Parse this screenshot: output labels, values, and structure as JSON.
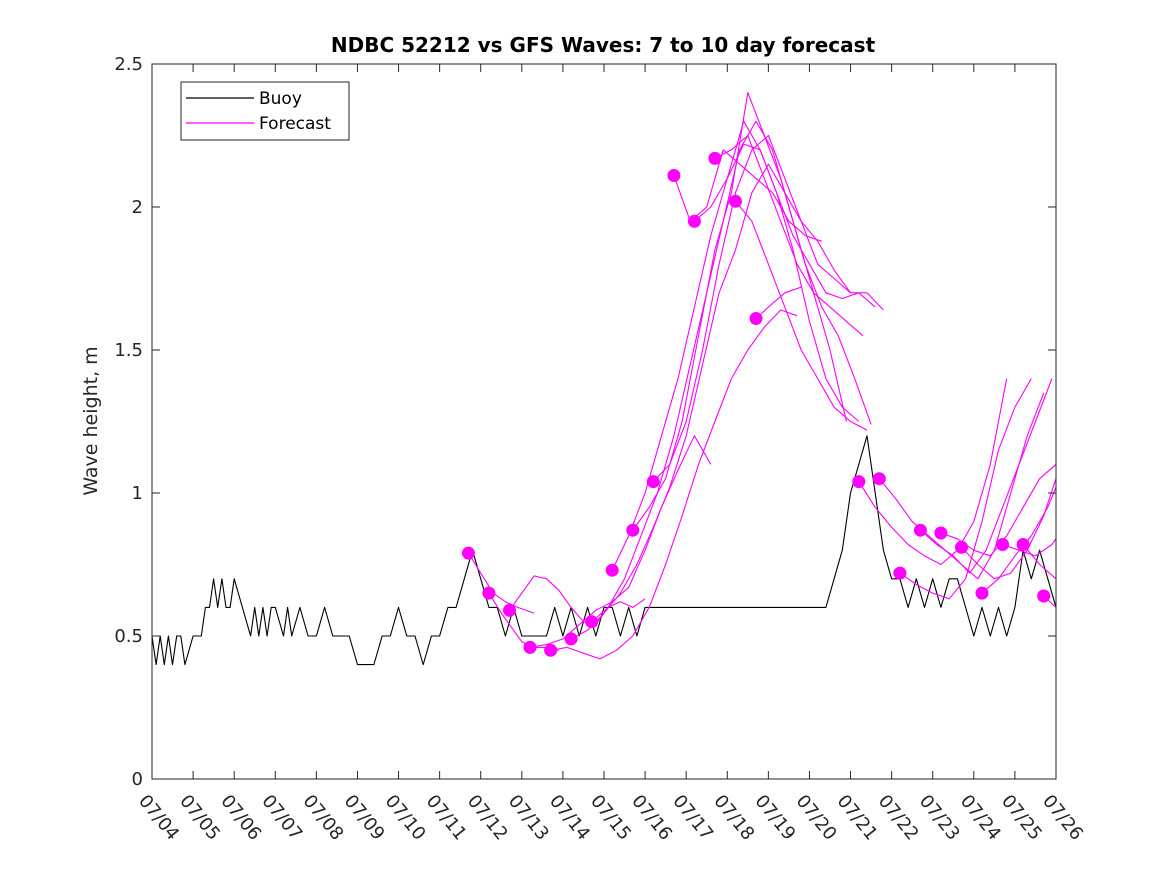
{
  "chart_data": {
    "type": "line",
    "title": "NDBC 52212 vs GFS Waves: 7 to 10 day forecast",
    "xlabel": "",
    "ylabel": "Wave height, m",
    "ylim": [
      0,
      2.5
    ],
    "yticks": [
      "0",
      "0.5",
      "1",
      "1.5",
      "2",
      "2.5"
    ],
    "xlim": [
      "07/04",
      "07/26"
    ],
    "xticks": [
      "07/04",
      "07/05",
      "07/06",
      "07/07",
      "07/08",
      "07/09",
      "07/10",
      "07/11",
      "07/12",
      "07/13",
      "07/14",
      "07/15",
      "07/16",
      "07/17",
      "07/18",
      "07/19",
      "07/20",
      "07/21",
      "07/22",
      "07/23",
      "07/24",
      "07/25",
      "07/26"
    ],
    "grid": false,
    "legend": {
      "position": "top-left",
      "entries": [
        "Buoy",
        "Forecast"
      ]
    },
    "colors": {
      "buoy": "#000000",
      "forecast": "#ff00ff",
      "axes": "#262626"
    },
    "series": [
      {
        "name": "Buoy",
        "color": "#000000",
        "x": [
          0.0,
          0.1,
          0.2,
          0.3,
          0.4,
          0.5,
          0.6,
          0.7,
          0.8,
          1.0,
          1.2,
          1.3,
          1.4,
          1.5,
          1.6,
          1.7,
          1.8,
          1.9,
          2.0,
          2.2,
          2.4,
          2.5,
          2.6,
          2.7,
          2.8,
          2.9,
          3.0,
          3.2,
          3.3,
          3.4,
          3.6,
          3.8,
          4.0,
          4.2,
          4.4,
          4.6,
          4.8,
          5.0,
          5.2,
          5.4,
          5.6,
          5.8,
          6.0,
          6.2,
          6.4,
          6.6,
          6.8,
          7.0,
          7.2,
          7.4,
          7.6,
          7.8,
          8.0,
          8.2,
          8.4,
          8.6,
          8.8,
          9.0,
          9.2,
          9.4,
          9.6,
          9.8,
          10.0,
          10.2,
          10.4,
          10.6,
          10.8,
          11.0,
          11.2,
          11.4,
          11.6,
          11.8,
          12.0,
          12.2,
          12.4,
          12.6,
          12.8,
          13.0,
          13.2,
          13.4,
          13.6,
          13.8,
          14.0,
          14.2,
          14.4,
          14.6,
          14.8,
          15.0,
          15.2,
          15.4,
          15.6,
          15.8,
          16.0,
          16.2,
          16.4,
          16.6,
          16.8,
          17.0,
          17.2,
          17.4,
          17.6,
          17.8,
          18.0,
          18.2,
          18.4,
          18.6,
          18.8,
          19.0,
          19.2,
          19.4,
          19.6,
          19.8,
          20.0,
          20.2,
          20.4,
          20.6,
          20.8,
          21.0,
          21.2,
          21.4,
          21.6,
          21.8,
          22.0
        ],
        "values": [
          0.5,
          0.4,
          0.5,
          0.4,
          0.5,
          0.4,
          0.5,
          0.5,
          0.4,
          0.5,
          0.5,
          0.6,
          0.6,
          0.7,
          0.6,
          0.7,
          0.6,
          0.6,
          0.7,
          0.6,
          0.5,
          0.6,
          0.5,
          0.6,
          0.5,
          0.6,
          0.6,
          0.5,
          0.6,
          0.5,
          0.6,
          0.5,
          0.5,
          0.6,
          0.5,
          0.5,
          0.5,
          0.4,
          0.4,
          0.4,
          0.5,
          0.5,
          0.6,
          0.5,
          0.5,
          0.4,
          0.5,
          0.5,
          0.6,
          0.6,
          0.7,
          0.8,
          0.7,
          0.6,
          0.6,
          0.5,
          0.6,
          0.5,
          0.5,
          0.5,
          0.5,
          0.6,
          0.5,
          0.6,
          0.5,
          0.6,
          0.5,
          0.6,
          0.6,
          0.5,
          0.6,
          0.5,
          0.6,
          0.6,
          0.6,
          0.6,
          0.6,
          0.6,
          0.6,
          0.6,
          0.6,
          0.6,
          0.6,
          0.6,
          0.6,
          0.6,
          0.6,
          0.6,
          0.6,
          0.6,
          0.6,
          0.6,
          0.6,
          0.6,
          0.6,
          0.7,
          0.8,
          1.0,
          1.1,
          1.2,
          1.0,
          0.8,
          0.7,
          0.7,
          0.6,
          0.7,
          0.6,
          0.7,
          0.6,
          0.7,
          0.7,
          0.6,
          0.5,
          0.6,
          0.5,
          0.6,
          0.5,
          0.6,
          0.8,
          0.7,
          0.8,
          0.7,
          0.6
        ],
        "markers": false
      },
      {
        "name": "Forecast",
        "color": "#ff00ff",
        "x": [
          7.7,
          8.0,
          8.3,
          8.6,
          8.9,
          9.3
        ],
        "values": [
          0.79,
          0.72,
          0.65,
          0.62,
          0.6,
          0.58
        ],
        "markers": false
      },
      {
        "color": "#ff00ff",
        "x": [
          8.2,
          8.5,
          8.8,
          9.0,
          9.3,
          9.6,
          9.9
        ],
        "values": [
          0.65,
          0.58,
          0.52,
          0.48,
          0.46,
          0.46,
          0.45
        ],
        "markers": false
      },
      {
        "color": "#ff00ff",
        "x": [
          8.7,
          9.0,
          9.3,
          9.6,
          9.9,
          10.2,
          10.5,
          10.8,
          11.1,
          11.4,
          11.7,
          12.0
        ],
        "values": [
          0.59,
          0.65,
          0.71,
          0.7,
          0.66,
          0.6,
          0.55,
          0.54,
          0.6,
          0.62,
          0.6,
          0.63
        ],
        "markers": false
      },
      {
        "color": "#ff00ff",
        "x": [
          9.2,
          9.6,
          10.0,
          10.4,
          10.8,
          11.2,
          11.6,
          12.0,
          12.4,
          12.8,
          13.2,
          13.6
        ],
        "values": [
          0.46,
          0.47,
          0.49,
          0.54,
          0.59,
          0.62,
          0.67,
          0.8,
          0.95,
          1.08,
          1.2,
          1.1
        ],
        "markers": false
      },
      {
        "color": "#ff00ff",
        "x": [
          9.7,
          10.1,
          10.5,
          10.9,
          11.3,
          11.7,
          12.1,
          12.5,
          12.9,
          13.3,
          13.7,
          14.1,
          14.5,
          14.9,
          15.3,
          15.7
        ],
        "values": [
          0.45,
          0.46,
          0.44,
          0.42,
          0.45,
          0.5,
          0.6,
          0.75,
          0.92,
          1.1,
          1.25,
          1.4,
          1.5,
          1.58,
          1.64,
          1.62
        ],
        "markers": false
      },
      {
        "color": "#ff00ff",
        "x": [
          10.2,
          10.6,
          11.0,
          11.4,
          11.8,
          12.2,
          12.6,
          13.0,
          13.4,
          13.8,
          14.2,
          14.6,
          15.0,
          15.4,
          15.8,
          16.2,
          16.6,
          17.0
        ],
        "values": [
          0.49,
          0.52,
          0.58,
          0.65,
          0.75,
          0.88,
          1.02,
          1.2,
          1.45,
          1.7,
          1.85,
          2.05,
          2.15,
          2.05,
          1.95,
          1.88,
          1.78,
          1.7
        ],
        "markers": false
      },
      {
        "color": "#ff00ff",
        "x": [
          10.7,
          11.1,
          11.5,
          11.9,
          12.3,
          12.7,
          13.1,
          13.5,
          13.9,
          14.3,
          14.7,
          15.1,
          15.5,
          15.9,
          16.3,
          16.7,
          17.1,
          17.5
        ],
        "values": [
          0.55,
          0.6,
          0.7,
          0.85,
          1.0,
          1.2,
          1.45,
          1.7,
          1.95,
          2.2,
          2.3,
          2.2,
          2.0,
          1.8,
          1.65,
          1.55,
          1.4,
          1.24
        ],
        "markers": false
      },
      {
        "color": "#ff00ff",
        "x": [
          11.2,
          11.6,
          12.0,
          12.4,
          12.8,
          13.2,
          13.6,
          14.0,
          14.4,
          14.8,
          15.2,
          15.6,
          16.0,
          16.4,
          16.8,
          17.2
        ],
        "values": [
          0.73,
          0.85,
          1.0,
          1.2,
          1.4,
          1.65,
          1.9,
          2.1,
          2.3,
          2.2,
          2.05,
          1.85,
          1.6,
          1.4,
          1.3,
          1.25
        ],
        "markers": false
      },
      {
        "color": "#ff00ff",
        "x": [
          11.7,
          12.1,
          12.5,
          12.9,
          13.3,
          13.7,
          14.1,
          14.5,
          14.9,
          15.3,
          15.7,
          16.1,
          16.5,
          16.9
        ],
        "values": [
          0.87,
          0.95,
          1.05,
          1.25,
          1.55,
          1.85,
          2.05,
          2.4,
          2.25,
          2.1,
          1.9,
          1.7,
          1.5,
          1.25
        ],
        "markers": false
      },
      {
        "color": "#ff00ff",
        "x": [
          12.2,
          12.6,
          13.0,
          13.4,
          13.8,
          14.2,
          14.6,
          15.0,
          15.4,
          15.8,
          16.2,
          16.6,
          17.0,
          17.4,
          17.8
        ],
        "values": [
          1.04,
          1.1,
          1.25,
          1.5,
          1.8,
          2.05,
          2.2,
          2.25,
          2.1,
          1.95,
          1.8,
          1.75,
          1.7,
          1.7,
          1.64
        ],
        "markers": false
      },
      {
        "color": "#ff00ff",
        "x": [
          12.7,
          13.1,
          13.5,
          13.9,
          14.3,
          14.7,
          15.1,
          15.5,
          15.9,
          16.3
        ],
        "values": [
          2.11,
          1.95,
          2.0,
          2.2,
          2.15,
          2.1,
          2.05,
          1.95,
          1.9,
          1.88
        ],
        "markers": false
      },
      {
        "color": "#ff00ff",
        "x": [
          13.2,
          13.6,
          14.0,
          14.4,
          14.8,
          15.2,
          15.6,
          16.0,
          16.4,
          16.8,
          17.2,
          17.6
        ],
        "values": [
          1.95,
          2.0,
          2.1,
          2.22,
          2.2,
          2.05,
          1.9,
          1.8,
          1.7,
          1.68,
          1.7,
          1.65
        ],
        "markers": false
      },
      {
        "color": "#ff00ff",
        "x": [
          13.7,
          14.1,
          14.5,
          14.9,
          15.3,
          15.7,
          16.1,
          16.5,
          16.9,
          17.3
        ],
        "values": [
          2.17,
          2.2,
          2.25,
          2.1,
          1.95,
          1.8,
          1.7,
          1.65,
          1.6,
          1.55
        ],
        "markers": false
      },
      {
        "color": "#ff00ff",
        "x": [
          14.2,
          14.6,
          15.0,
          15.4,
          15.8,
          16.2,
          16.6,
          17.0,
          17.4
        ],
        "values": [
          2.02,
          1.95,
          1.8,
          1.65,
          1.5,
          1.4,
          1.3,
          1.25,
          1.22
        ],
        "markers": false
      },
      {
        "color": "#ff00ff",
        "x": [
          14.7,
          15.0,
          15.4,
          15.8
        ],
        "values": [
          1.61,
          1.65,
          1.7,
          1.72
        ],
        "markers": false
      },
      {
        "color": "#ff00ff",
        "x": [
          17.2,
          17.6,
          18.0,
          18.4,
          18.8,
          19.2,
          19.6,
          20.0,
          20.4,
          20.8
        ],
        "values": [
          1.04,
          0.95,
          0.88,
          0.82,
          0.78,
          0.75,
          0.8,
          0.9,
          1.1,
          1.4
        ],
        "markers": false
      },
      {
        "color": "#ff00ff",
        "x": [
          17.7,
          18.1,
          18.5,
          18.9,
          19.3,
          19.7,
          20.1,
          20.5,
          20.9,
          21.3,
          21.7
        ],
        "values": [
          1.05,
          0.98,
          0.9,
          0.85,
          0.8,
          0.75,
          0.7,
          0.8,
          1.0,
          1.2,
          1.35
        ],
        "markers": false
      },
      {
        "color": "#ff00ff",
        "x": [
          18.2,
          18.6,
          19.0,
          19.4,
          19.8,
          20.2,
          20.6,
          21.0,
          21.4
        ],
        "values": [
          0.72,
          0.68,
          0.65,
          0.63,
          0.7,
          0.9,
          1.15,
          1.3,
          1.4
        ],
        "markers": false
      },
      {
        "color": "#ff00ff",
        "x": [
          18.7,
          19.1,
          19.5,
          19.9,
          20.3,
          20.7,
          21.1,
          21.5,
          21.9
        ],
        "values": [
          0.87,
          0.82,
          0.78,
          0.72,
          0.8,
          0.95,
          1.1,
          1.25,
          1.4
        ],
        "markers": false
      },
      {
        "color": "#ff00ff",
        "x": [
          19.2,
          19.6,
          20.0,
          20.4,
          20.8,
          21.2,
          21.6,
          22.0
        ],
        "values": [
          0.86,
          0.84,
          0.8,
          0.78,
          0.85,
          0.95,
          1.05,
          1.1
        ],
        "markers": false
      },
      {
        "color": "#ff00ff",
        "x": [
          19.7,
          20.1,
          20.5,
          20.9,
          21.3,
          21.7,
          22.0
        ],
        "values": [
          0.81,
          0.75,
          0.7,
          0.72,
          0.8,
          0.92,
          1.05
        ],
        "markers": false
      },
      {
        "color": "#ff00ff",
        "x": [
          20.2,
          20.6,
          21.0,
          21.4,
          21.8,
          22.0
        ],
        "values": [
          0.65,
          0.7,
          0.78,
          0.85,
          0.95,
          1.02
        ],
        "markers": false
      },
      {
        "color": "#ff00ff",
        "x": [
          20.7,
          21.1,
          21.5,
          21.9,
          22.0
        ],
        "values": [
          0.82,
          0.8,
          0.78,
          0.82,
          0.84
        ],
        "markers": false
      },
      {
        "color": "#ff00ff",
        "x": [
          21.2,
          21.6,
          22.0
        ],
        "values": [
          0.82,
          0.75,
          0.7
        ],
        "markers": false
      },
      {
        "color": "#ff00ff",
        "x": [
          21.7,
          22.0
        ],
        "values": [
          0.64,
          0.6
        ],
        "markers": false
      }
    ],
    "forecast_points": {
      "color": "#ff00ff",
      "x": [
        7.7,
        8.2,
        8.7,
        9.2,
        9.7,
        10.2,
        10.7,
        11.2,
        11.7,
        12.2,
        12.7,
        13.2,
        13.7,
        14.2,
        14.7,
        17.2,
        17.7,
        18.2,
        18.7,
        19.2,
        19.7,
        20.2,
        20.7,
        21.2,
        21.7
      ],
      "values": [
        0.79,
        0.65,
        0.59,
        0.46,
        0.45,
        0.49,
        0.55,
        0.73,
        0.87,
        1.04,
        2.11,
        1.95,
        2.17,
        2.02,
        1.61,
        1.04,
        1.05,
        0.72,
        0.87,
        0.86,
        0.81,
        0.65,
        0.82,
        0.82,
        0.64
      ]
    }
  }
}
